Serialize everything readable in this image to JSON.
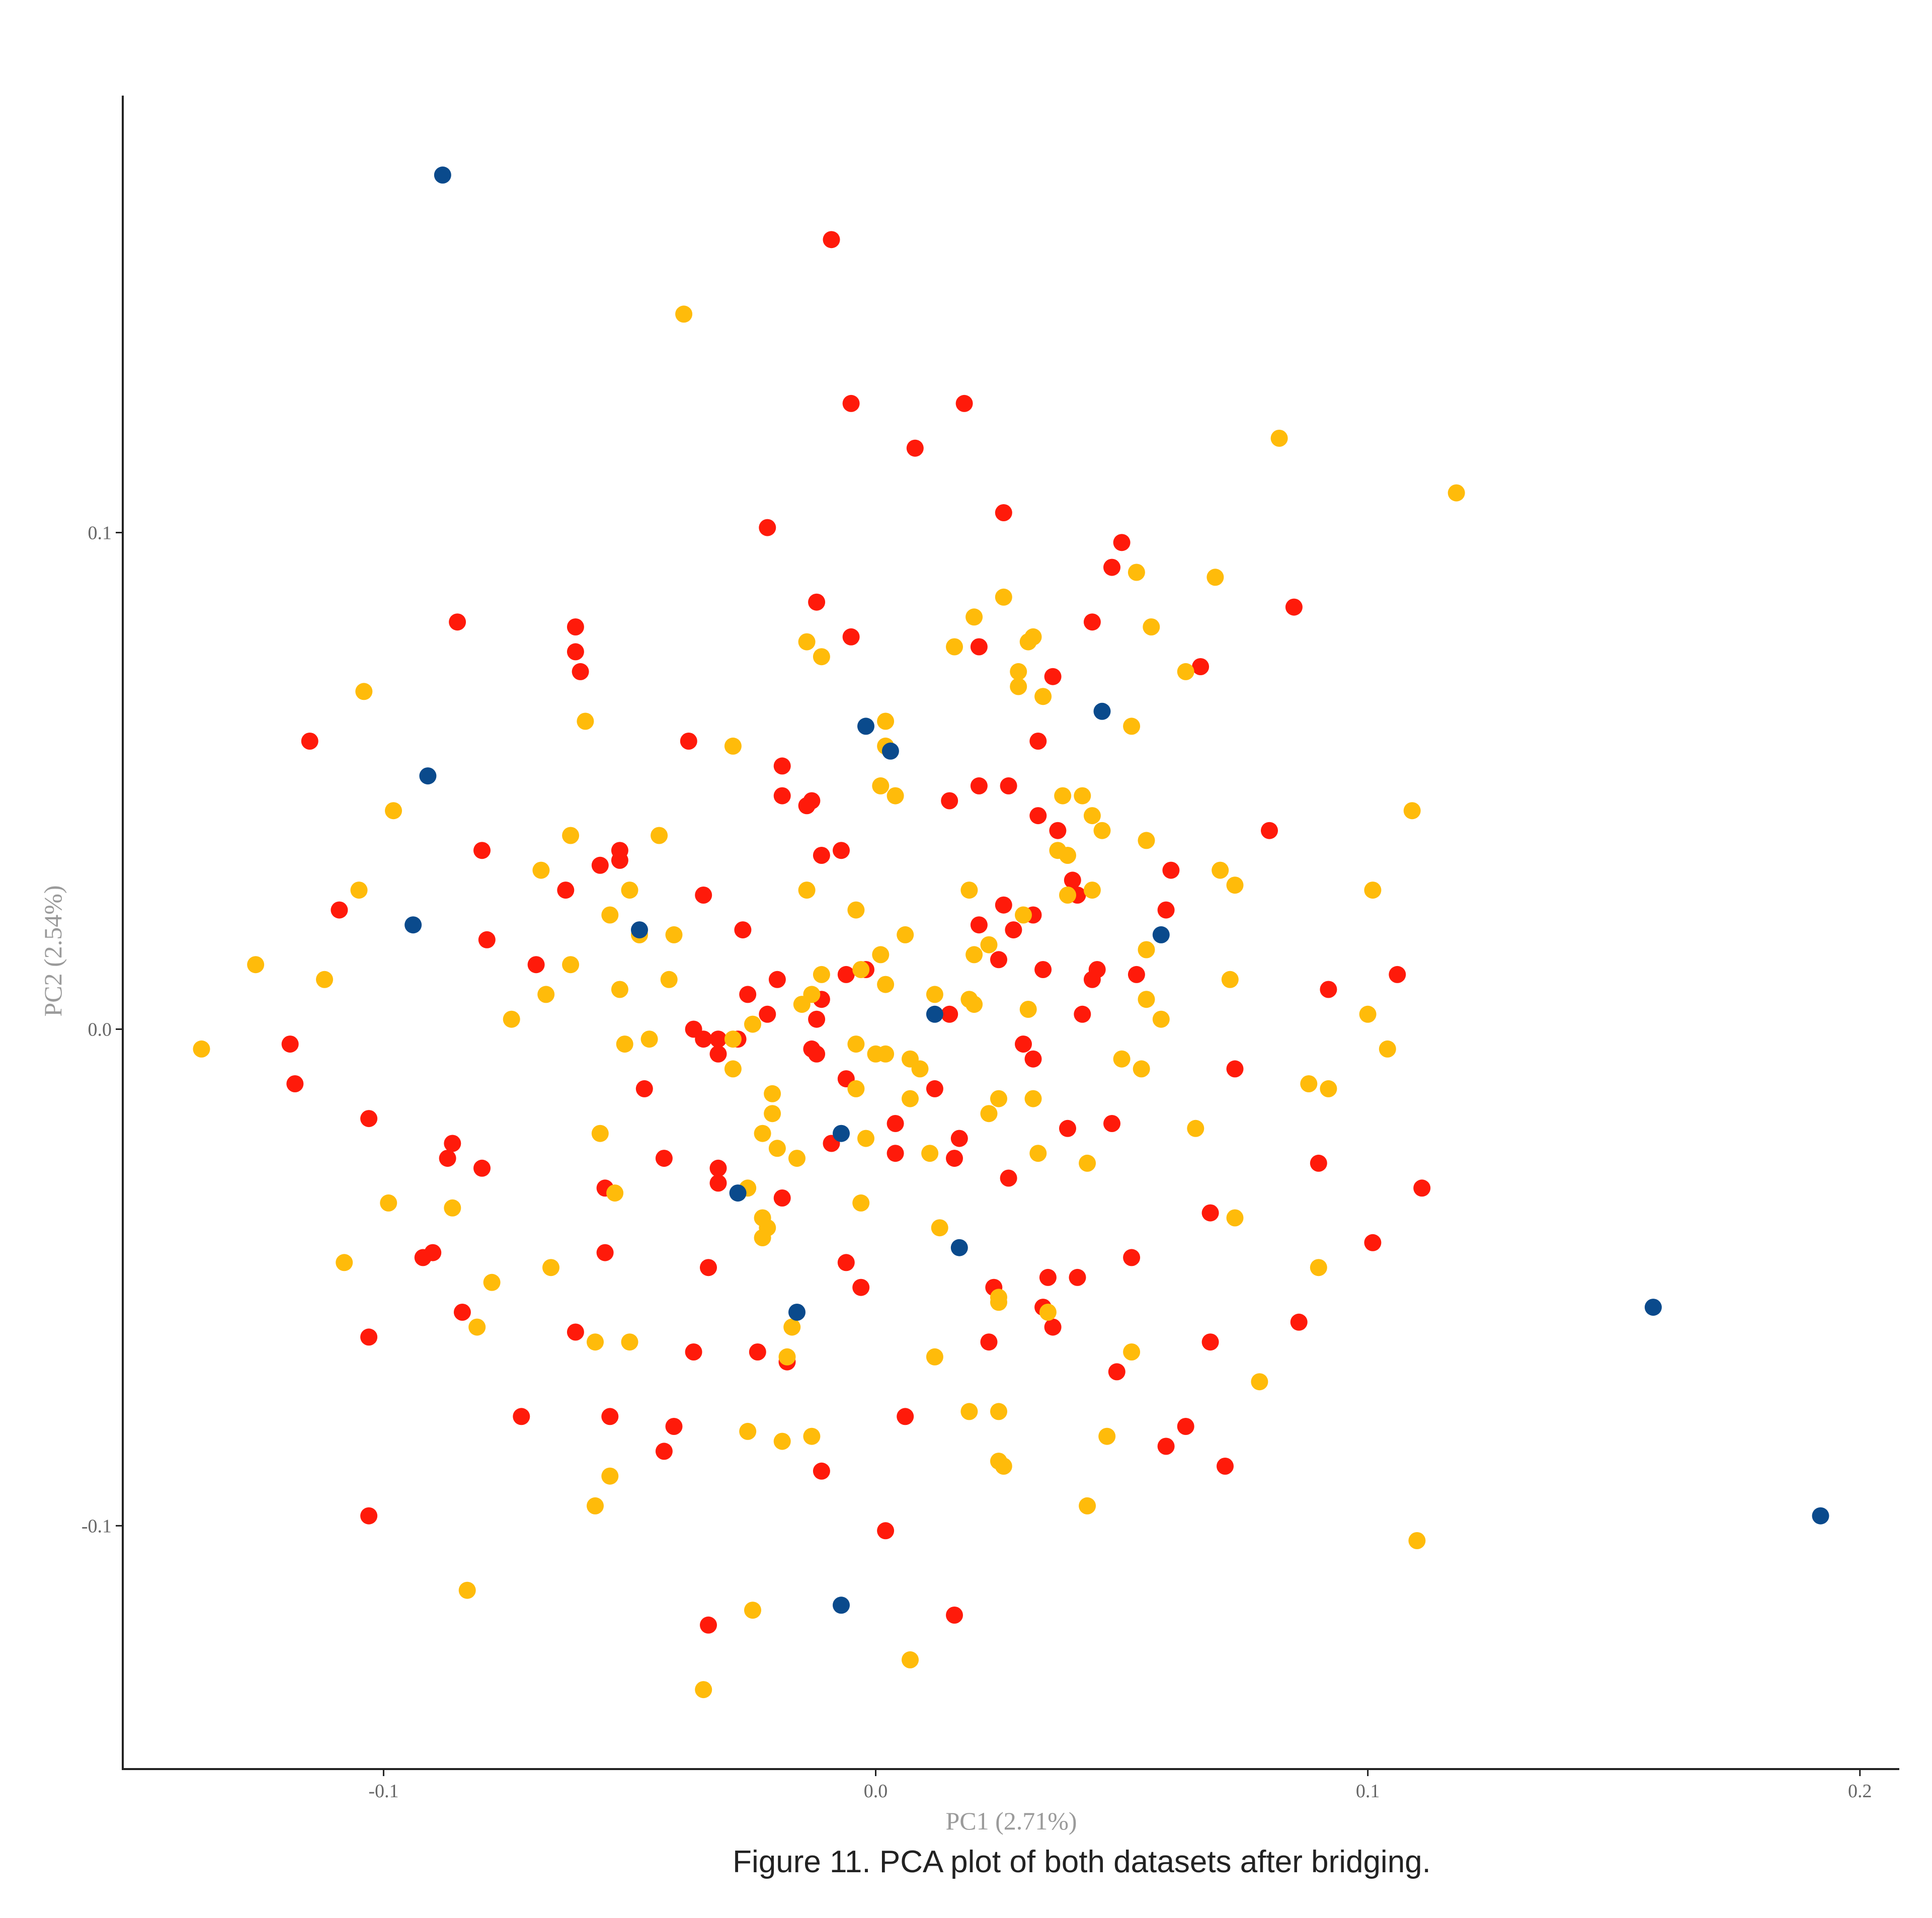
{
  "caption": "Figure 11. PCA plot of both datasets after bridging.",
  "chart_data": {
    "type": "scatter",
    "title": "",
    "xlabel": "PC1 (2.71%)",
    "ylabel": "PC2 (2.54%)",
    "xlim": [
      -0.153,
      0.208
    ],
    "ylim": [
      -0.149,
      0.188
    ],
    "xticks": [
      -0.1,
      0.0,
      0.1,
      0.2
    ],
    "xtick_labels": [
      "-0.1",
      "0.0",
      "0.1",
      "0.2"
    ],
    "yticks": [
      -0.1,
      0.0,
      0.1
    ],
    "ytick_labels": [
      "-0.1",
      "0.0",
      "0.1"
    ],
    "grid": false,
    "legend": "none",
    "series": [
      {
        "color": "#ff1a0a",
        "points": [
          [
            -0.009,
            0.159
          ],
          [
            -0.005,
            0.126
          ],
          [
            0.018,
            0.126
          ],
          [
            0.008,
            0.117
          ],
          [
            -0.022,
            0.101
          ],
          [
            0.026,
            0.104
          ],
          [
            0.05,
            0.098
          ],
          [
            0.048,
            0.093
          ],
          [
            -0.085,
            0.082
          ],
          [
            -0.061,
            0.081
          ],
          [
            -0.012,
            0.086
          ],
          [
            -0.005,
            0.079
          ],
          [
            0.044,
            0.082
          ],
          [
            0.085,
            0.085
          ],
          [
            0.021,
            0.077
          ],
          [
            -0.061,
            0.076
          ],
          [
            -0.06,
            0.072
          ],
          [
            0.036,
            0.071
          ],
          [
            0.066,
            0.073
          ],
          [
            -0.115,
            0.058
          ],
          [
            -0.038,
            0.058
          ],
          [
            0.033,
            0.058
          ],
          [
            -0.019,
            0.053
          ],
          [
            -0.019,
            0.047
          ],
          [
            -0.013,
            0.046
          ],
          [
            0.015,
            0.046
          ],
          [
            0.021,
            0.049
          ],
          [
            0.027,
            0.049
          ],
          [
            -0.014,
            0.045
          ],
          [
            0.033,
            0.043
          ],
          [
            0.037,
            0.04
          ],
          [
            0.08,
            0.04
          ],
          [
            -0.08,
            0.036
          ],
          [
            -0.052,
            0.036
          ],
          [
            -0.011,
            0.035
          ],
          [
            -0.007,
            0.036
          ],
          [
            -0.052,
            0.034
          ],
          [
            -0.056,
            0.033
          ],
          [
            0.06,
            0.032
          ],
          [
            0.04,
            0.03
          ],
          [
            -0.063,
            0.028
          ],
          [
            -0.035,
            0.027
          ],
          [
            0.041,
            0.027
          ],
          [
            0.026,
            0.025
          ],
          [
            0.032,
            0.023
          ],
          [
            0.059,
            0.024
          ],
          [
            -0.109,
            0.024
          ],
          [
            0.021,
            0.021
          ],
          [
            0.028,
            0.02
          ],
          [
            -0.079,
            0.018
          ],
          [
            -0.027,
            0.02
          ],
          [
            0.025,
            0.014
          ],
          [
            -0.069,
            0.013
          ],
          [
            -0.006,
            0.011
          ],
          [
            -0.002,
            0.012
          ],
          [
            0.034,
            0.012
          ],
          [
            0.045,
            0.012
          ],
          [
            0.053,
            0.011
          ],
          [
            0.106,
            0.011
          ],
          [
            -0.02,
            0.01
          ],
          [
            0.044,
            0.01
          ],
          [
            0.092,
            0.008
          ],
          [
            -0.026,
            0.007
          ],
          [
            -0.011,
            0.006
          ],
          [
            -0.022,
            0.003
          ],
          [
            -0.012,
            0.002
          ],
          [
            0.015,
            0.003
          ],
          [
            0.042,
            0.003
          ],
          [
            -0.037,
            0.0
          ],
          [
            -0.035,
            -0.002
          ],
          [
            -0.032,
            -0.002
          ],
          [
            -0.028,
            -0.002
          ],
          [
            -0.119,
            -0.003
          ],
          [
            -0.013,
            -0.004
          ],
          [
            0.03,
            -0.003
          ],
          [
            -0.012,
            -0.005
          ],
          [
            -0.032,
            -0.005
          ],
          [
            0.032,
            -0.006
          ],
          [
            0.073,
            -0.008
          ],
          [
            -0.118,
            -0.011
          ],
          [
            -0.047,
            -0.012
          ],
          [
            -0.006,
            -0.01
          ],
          [
            0.012,
            -0.012
          ],
          [
            -0.103,
            -0.018
          ],
          [
            0.004,
            -0.019
          ],
          [
            0.048,
            -0.019
          ],
          [
            0.039,
            -0.02
          ],
          [
            -0.086,
            -0.023
          ],
          [
            0.017,
            -0.022
          ],
          [
            -0.009,
            -0.023
          ],
          [
            -0.087,
            -0.026
          ],
          [
            0.004,
            -0.025
          ],
          [
            -0.043,
            -0.026
          ],
          [
            0.016,
            -0.026
          ],
          [
            0.09,
            -0.027
          ],
          [
            -0.08,
            -0.028
          ],
          [
            -0.032,
            -0.028
          ],
          [
            0.027,
            -0.03
          ],
          [
            -0.055,
            -0.032
          ],
          [
            -0.032,
            -0.031
          ],
          [
            -0.019,
            -0.034
          ],
          [
            0.111,
            -0.032
          ],
          [
            0.068,
            -0.037
          ],
          [
            -0.055,
            -0.045
          ],
          [
            -0.09,
            -0.045
          ],
          [
            -0.092,
            -0.046
          ],
          [
            0.101,
            -0.043
          ],
          [
            0.052,
            -0.046
          ],
          [
            -0.034,
            -0.048
          ],
          [
            -0.006,
            -0.047
          ],
          [
            0.035,
            -0.05
          ],
          [
            0.041,
            -0.05
          ],
          [
            -0.003,
            -0.052
          ],
          [
            0.024,
            -0.052
          ],
          [
            -0.084,
            -0.057
          ],
          [
            0.034,
            -0.056
          ],
          [
            0.086,
            -0.059
          ],
          [
            -0.061,
            -0.061
          ],
          [
            0.036,
            -0.06
          ],
          [
            -0.103,
            -0.062
          ],
          [
            0.023,
            -0.063
          ],
          [
            0.068,
            -0.063
          ],
          [
            -0.024,
            -0.065
          ],
          [
            -0.037,
            -0.065
          ],
          [
            -0.018,
            -0.067
          ],
          [
            0.049,
            -0.069
          ],
          [
            -0.072,
            -0.078
          ],
          [
            -0.054,
            -0.078
          ],
          [
            0.006,
            -0.078
          ],
          [
            -0.041,
            -0.08
          ],
          [
            0.063,
            -0.08
          ],
          [
            0.059,
            -0.084
          ],
          [
            -0.043,
            -0.085
          ],
          [
            0.071,
            -0.088
          ],
          [
            -0.011,
            -0.089
          ],
          [
            -0.103,
            -0.098
          ],
          [
            0.002,
            -0.101
          ],
          [
            -0.034,
            -0.12
          ],
          [
            0.016,
            -0.118
          ]
        ]
      },
      {
        "color": "#ffbb0a",
        "points": [
          [
            -0.039,
            0.144
          ],
          [
            0.082,
            0.119
          ],
          [
            0.118,
            0.108
          ],
          [
            0.053,
            0.092
          ],
          [
            0.069,
            0.091
          ],
          [
            0.026,
            0.087
          ],
          [
            0.02,
            0.083
          ],
          [
            0.056,
            0.081
          ],
          [
            -0.014,
            0.078
          ],
          [
            0.016,
            0.077
          ],
          [
            0.031,
            0.078
          ],
          [
            0.032,
            0.079
          ],
          [
            -0.011,
            0.075
          ],
          [
            0.029,
            0.072
          ],
          [
            0.063,
            0.072
          ],
          [
            0.029,
            0.069
          ],
          [
            0.034,
            0.067
          ],
          [
            -0.104,
            0.068
          ],
          [
            -0.059,
            0.062
          ],
          [
            0.002,
            0.062
          ],
          [
            0.052,
            0.061
          ],
          [
            -0.029,
            0.057
          ],
          [
            0.002,
            0.057
          ],
          [
            0.001,
            0.049
          ],
          [
            0.004,
            0.047
          ],
          [
            0.038,
            0.047
          ],
          [
            0.042,
            0.047
          ],
          [
            0.109,
            0.044
          ],
          [
            -0.098,
            0.044
          ],
          [
            0.044,
            0.043
          ],
          [
            0.046,
            0.04
          ],
          [
            -0.062,
            0.039
          ],
          [
            -0.044,
            0.039
          ],
          [
            0.055,
            0.038
          ],
          [
            0.037,
            0.036
          ],
          [
            0.039,
            0.035
          ],
          [
            -0.068,
            0.032
          ],
          [
            0.07,
            0.032
          ],
          [
            0.073,
            0.029
          ],
          [
            -0.105,
            0.028
          ],
          [
            -0.05,
            0.028
          ],
          [
            -0.014,
            0.028
          ],
          [
            0.019,
            0.028
          ],
          [
            0.044,
            0.028
          ],
          [
            0.101,
            0.028
          ],
          [
            0.039,
            0.027
          ],
          [
            -0.054,
            0.023
          ],
          [
            -0.004,
            0.024
          ],
          [
            0.03,
            0.023
          ],
          [
            -0.048,
            0.019
          ],
          [
            -0.041,
            0.019
          ],
          [
            0.006,
            0.019
          ],
          [
            0.055,
            0.016
          ],
          [
            0.023,
            0.017
          ],
          [
            0.02,
            0.015
          ],
          [
            0.001,
            0.015
          ],
          [
            -0.126,
            0.013
          ],
          [
            -0.062,
            0.013
          ],
          [
            -0.011,
            0.011
          ],
          [
            -0.003,
            0.012
          ],
          [
            -0.112,
            0.01
          ],
          [
            -0.042,
            0.01
          ],
          [
            -0.052,
            0.008
          ],
          [
            -0.067,
            0.007
          ],
          [
            0.072,
            0.01
          ],
          [
            0.002,
            0.009
          ],
          [
            -0.013,
            0.007
          ],
          [
            0.055,
            0.006
          ],
          [
            0.012,
            0.007
          ],
          [
            0.019,
            0.006
          ],
          [
            0.02,
            0.005
          ],
          [
            -0.015,
            0.005
          ],
          [
            0.031,
            0.004
          ],
          [
            0.1,
            0.003
          ],
          [
            -0.074,
            0.002
          ],
          [
            -0.025,
            0.001
          ],
          [
            0.058,
            0.002
          ],
          [
            -0.029,
            -0.002
          ],
          [
            -0.046,
            -0.002
          ],
          [
            -0.137,
            -0.004
          ],
          [
            -0.051,
            -0.003
          ],
          [
            -0.004,
            -0.003
          ],
          [
            0.104,
            -0.004
          ],
          [
            0.0,
            -0.005
          ],
          [
            0.002,
            -0.005
          ],
          [
            0.007,
            -0.006
          ],
          [
            0.05,
            -0.006
          ],
          [
            0.009,
            -0.008
          ],
          [
            -0.029,
            -0.008
          ],
          [
            0.054,
            -0.008
          ],
          [
            0.088,
            -0.011
          ],
          [
            0.092,
            -0.012
          ],
          [
            -0.004,
            -0.012
          ],
          [
            -0.021,
            -0.013
          ],
          [
            0.007,
            -0.014
          ],
          [
            0.025,
            -0.014
          ],
          [
            0.032,
            -0.014
          ],
          [
            0.023,
            -0.017
          ],
          [
            -0.021,
            -0.017
          ],
          [
            -0.023,
            -0.021
          ],
          [
            0.065,
            -0.02
          ],
          [
            -0.056,
            -0.021
          ],
          [
            -0.002,
            -0.022
          ],
          [
            -0.02,
            -0.024
          ],
          [
            0.011,
            -0.025
          ],
          [
            0.033,
            -0.025
          ],
          [
            -0.016,
            -0.026
          ],
          [
            0.043,
            -0.027
          ],
          [
            -0.026,
            -0.032
          ],
          [
            -0.053,
            -0.033
          ],
          [
            -0.099,
            -0.035
          ],
          [
            -0.003,
            -0.035
          ],
          [
            -0.086,
            -0.036
          ],
          [
            0.073,
            -0.038
          ],
          [
            -0.023,
            -0.038
          ],
          [
            -0.022,
            -0.04
          ],
          [
            -0.023,
            -0.042
          ],
          [
            0.013,
            -0.04
          ],
          [
            -0.108,
            -0.047
          ],
          [
            -0.066,
            -0.048
          ],
          [
            0.09,
            -0.048
          ],
          [
            -0.078,
            -0.051
          ],
          [
            0.025,
            -0.054
          ],
          [
            0.025,
            -0.055
          ],
          [
            0.035,
            -0.057
          ],
          [
            -0.017,
            -0.06
          ],
          [
            -0.081,
            -0.06
          ],
          [
            -0.057,
            -0.063
          ],
          [
            -0.05,
            -0.063
          ],
          [
            0.052,
            -0.065
          ],
          [
            -0.018,
            -0.066
          ],
          [
            0.012,
            -0.066
          ],
          [
            0.078,
            -0.071
          ],
          [
            0.019,
            -0.077
          ],
          [
            0.025,
            -0.077
          ],
          [
            -0.026,
            -0.081
          ],
          [
            -0.013,
            -0.082
          ],
          [
            -0.019,
            -0.083
          ],
          [
            0.047,
            -0.082
          ],
          [
            0.025,
            -0.087
          ],
          [
            0.026,
            -0.088
          ],
          [
            -0.054,
            -0.09
          ],
          [
            -0.057,
            -0.096
          ],
          [
            0.043,
            -0.096
          ],
          [
            0.11,
            -0.103
          ],
          [
            -0.083,
            -0.113
          ],
          [
            -0.025,
            -0.117
          ],
          [
            0.007,
            -0.127
          ],
          [
            -0.035,
            -0.133
          ]
        ]
      },
      {
        "color": "#0a4a8c",
        "points": [
          [
            -0.088,
            0.172
          ],
          [
            0.046,
            0.064
          ],
          [
            -0.002,
            0.061
          ],
          [
            0.003,
            0.056
          ],
          [
            -0.091,
            0.051
          ],
          [
            -0.094,
            0.021
          ],
          [
            0.058,
            0.019
          ],
          [
            -0.048,
            0.02
          ],
          [
            0.012,
            0.003
          ],
          [
            -0.007,
            -0.021
          ],
          [
            -0.028,
            -0.033
          ],
          [
            0.017,
            -0.044
          ],
          [
            -0.016,
            -0.057
          ],
          [
            0.158,
            -0.056
          ],
          [
            0.192,
            -0.098
          ],
          [
            -0.007,
            -0.116
          ]
        ]
      }
    ]
  }
}
